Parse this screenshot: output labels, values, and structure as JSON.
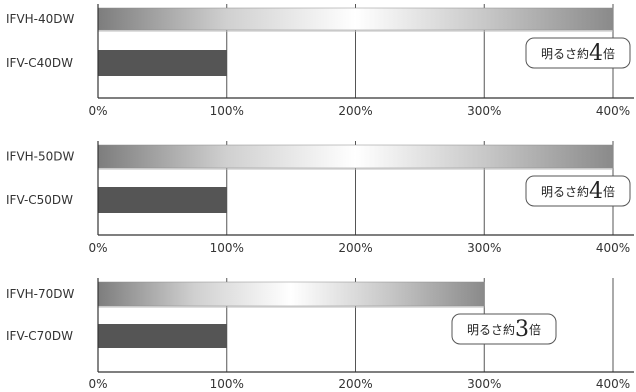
{
  "chart_data": [
    {
      "type": "bar",
      "orientation": "horizontal",
      "categories": [
        "IFVH-40DW",
        "IFV-C40DW"
      ],
      "values": [
        400,
        100
      ],
      "unit": "%",
      "xlim": [
        0,
        400
      ],
      "xticks": [
        0,
        100,
        200,
        300,
        400
      ],
      "tick_labels": [
        "0%",
        "100%",
        "200%",
        "300%",
        "400%"
      ],
      "grid": true,
      "callout": {
        "prefix": "明るさ約",
        "number": "4",
        "suffix": "倍"
      }
    },
    {
      "type": "bar",
      "orientation": "horizontal",
      "categories": [
        "IFVH-50DW",
        "IFV-C50DW"
      ],
      "values": [
        400,
        100
      ],
      "unit": "%",
      "xlim": [
        0,
        400
      ],
      "xticks": [
        0,
        100,
        200,
        300,
        400
      ],
      "tick_labels": [
        "0%",
        "100%",
        "200%",
        "300%",
        "400%"
      ],
      "grid": true,
      "callout": {
        "prefix": "明るさ約",
        "number": "4",
        "suffix": "倍"
      }
    },
    {
      "type": "bar",
      "orientation": "horizontal",
      "categories": [
        "IFVH-70DW",
        "IFV-C70DW"
      ],
      "values": [
        300,
        100
      ],
      "unit": "%",
      "xlim": [
        0,
        400
      ],
      "xticks": [
        0,
        100,
        200,
        300,
        400
      ],
      "tick_labels": [
        "0%",
        "100%",
        "200%",
        "300%",
        "400%"
      ],
      "grid": true,
      "callout": {
        "prefix": "明るさ約",
        "number": "3",
        "suffix": "倍"
      }
    }
  ],
  "colors": {
    "bar_dark": "#555555",
    "bar_gradient": [
      "#7d7d7d",
      "#d0d0d0",
      "#ffffff",
      "#c8c8c8",
      "#8a8a8a"
    ],
    "axis": "#333333",
    "grid": "#555555",
    "callout_border": "#555555"
  }
}
